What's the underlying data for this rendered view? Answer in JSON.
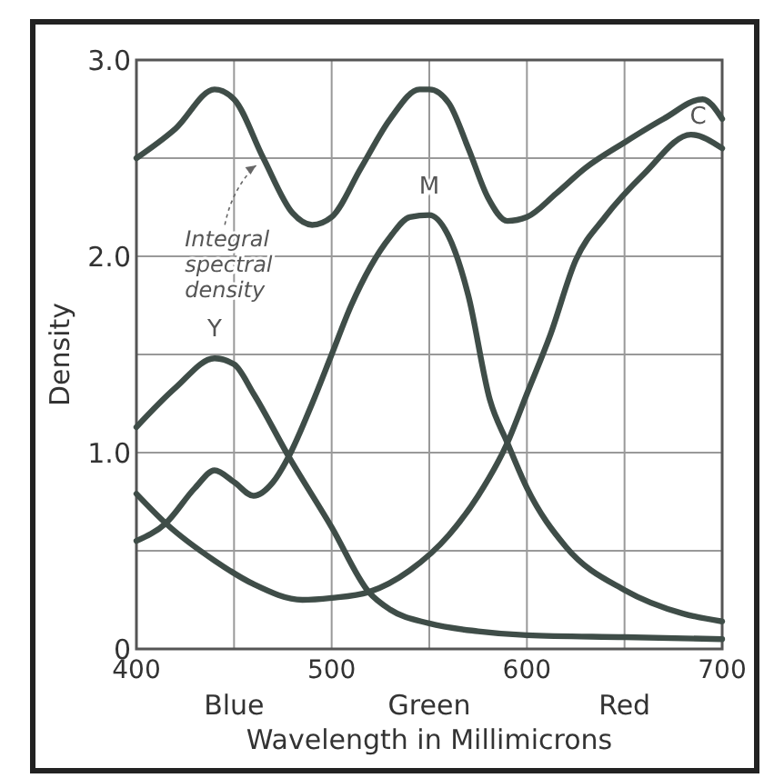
{
  "chart_data": {
    "type": "line",
    "xlabel": "Wavelength in Millimicrons",
    "ylabel": "Density",
    "annotations": [
      "Blue",
      "Green",
      "Red"
    ],
    "xlim": [
      400,
      700
    ],
    "xticks": [
      400,
      {
        "value": 450,
        "label": null
      },
      500,
      {
        "value": 550,
        "label": null
      },
      600,
      {
        "value": 650,
        "label": null
      },
      700
    ],
    "ylim": [
      0,
      3
    ],
    "yticks": [
      {
        "value": 0,
        "label": "0"
      },
      {
        "value": 0.5,
        "label": null
      },
      {
        "value": 1,
        "label": "1.0"
      },
      {
        "value": 1.5,
        "label": null
      },
      {
        "value": 2,
        "label": "2.0"
      },
      {
        "value": 2.5,
        "label": null
      },
      {
        "value": 3,
        "label": "3.0"
      }
    ],
    "grid": true,
    "marker": "none",
    "line_style": "solid",
    "series": [
      {
        "name": "Integral spectral density",
        "color": "#3f4d48",
        "x": [
          400,
          420,
          440,
          450,
          465,
          480,
          490,
          500,
          515,
          530,
          545,
          550,
          560,
          570,
          580,
          590,
          600,
          615,
          630,
          650,
          670,
          690,
          700
        ],
        "values": [
          2.5,
          2.65,
          2.85,
          2.8,
          2.5,
          2.22,
          2.16,
          2.2,
          2.45,
          2.7,
          2.85,
          2.85,
          2.78,
          2.55,
          2.3,
          2.18,
          2.2,
          2.32,
          2.45,
          2.58,
          2.7,
          2.8,
          2.7
        ]
      },
      {
        "name": "Y",
        "color": "#3f4d48",
        "x": [
          400,
          420,
          440,
          450,
          460,
          478,
          500,
          519,
          530,
          550,
          575,
          600,
          650,
          700
        ],
        "values": [
          1.13,
          1.33,
          1.48,
          1.45,
          1.3,
          0.98,
          0.62,
          0.29,
          0.2,
          0.13,
          0.09,
          0.07,
          0.06,
          0.05
        ]
      },
      {
        "name": "M",
        "color": "#3f4d48",
        "x": [
          400,
          415,
          430,
          440,
          450,
          460,
          470,
          478,
          490,
          500,
          510,
          520,
          530,
          540,
          550,
          560,
          570,
          581,
          590,
          600,
          620,
          650,
          680,
          700
        ],
        "values": [
          0.55,
          0.64,
          0.82,
          0.91,
          0.85,
          0.78,
          0.85,
          0.98,
          1.25,
          1.5,
          1.75,
          1.95,
          2.1,
          2.2,
          2.21,
          2.1,
          1.8,
          1.27,
          1.05,
          0.82,
          0.52,
          0.3,
          0.18,
          0.14
        ]
      },
      {
        "name": "C",
        "color": "#3f4d48",
        "x": [
          400,
          415,
          440,
          460,
          485,
          500,
          519,
          540,
          560,
          575,
          590,
          600,
          612,
          625,
          640,
          660,
          684,
          700
        ],
        "values": [
          0.79,
          0.64,
          0.45,
          0.33,
          0.25,
          0.26,
          0.29,
          0.4,
          0.58,
          0.78,
          1.05,
          1.3,
          1.6,
          1.98,
          2.2,
          2.42,
          2.62,
          2.55
        ]
      }
    ]
  }
}
